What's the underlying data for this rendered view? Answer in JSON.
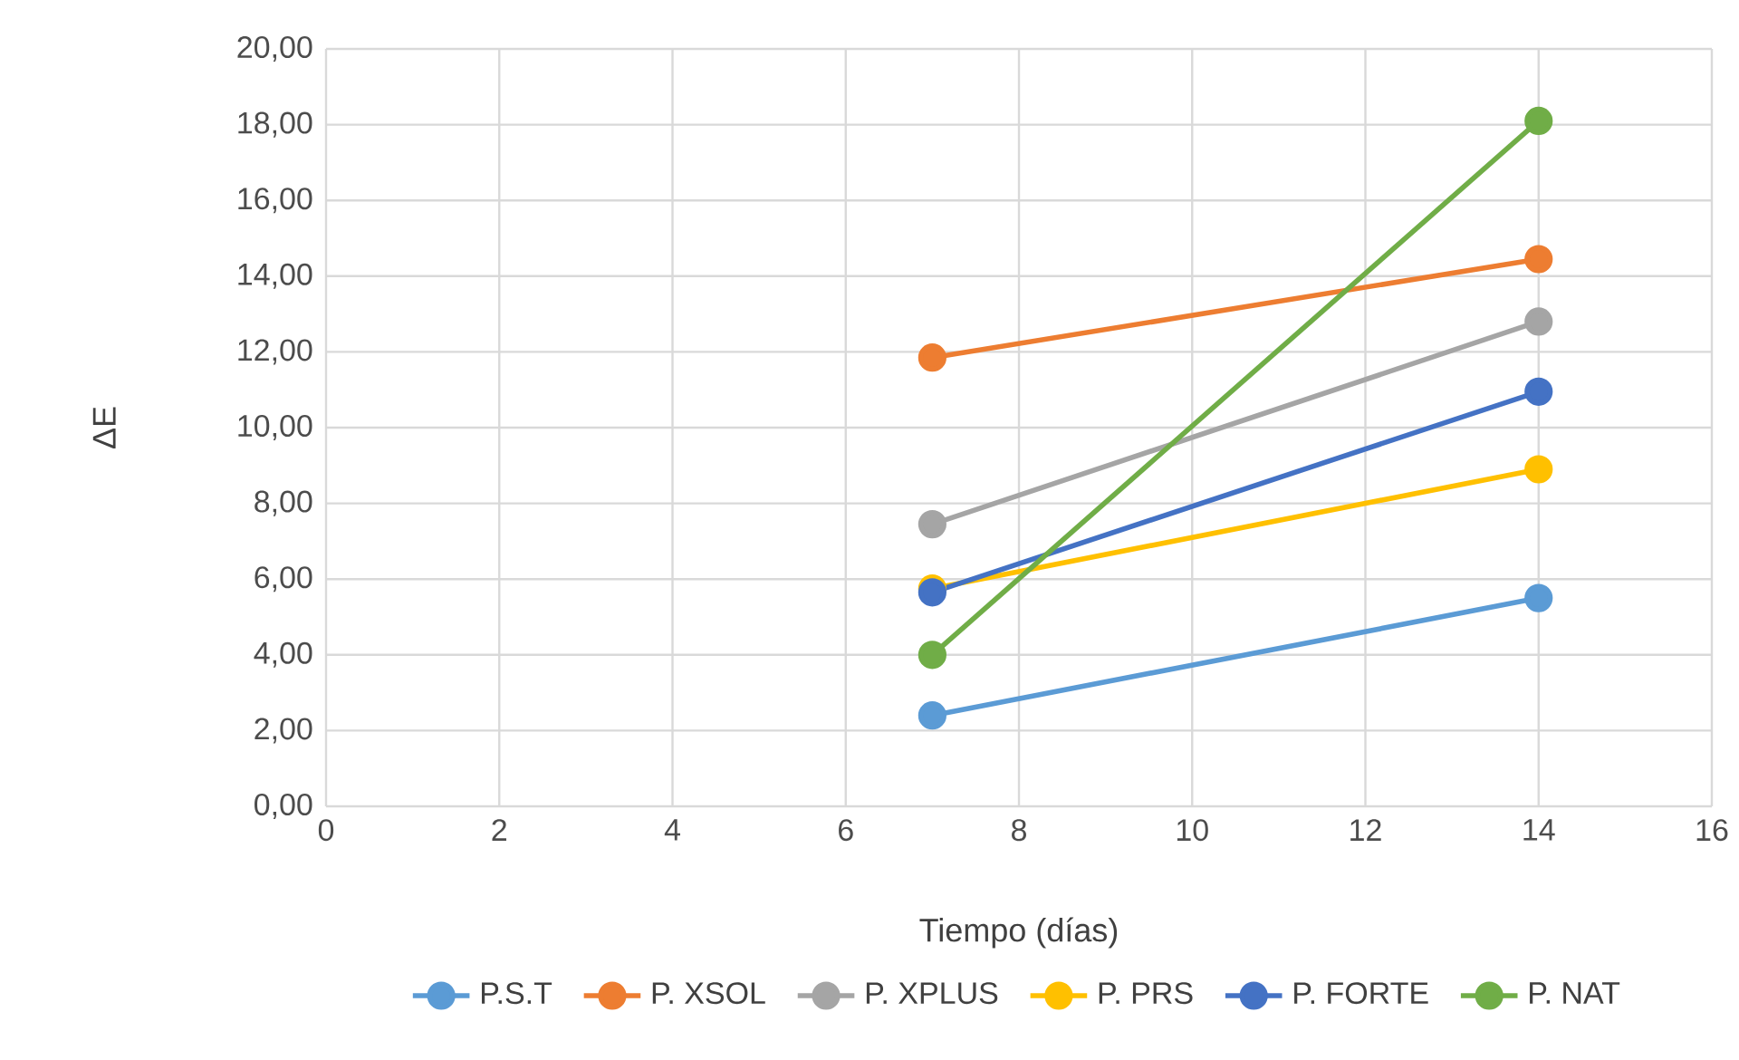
{
  "chart_data": {
    "type": "line",
    "xlabel": "Tiempo (días)",
    "ylabel": "ΔE",
    "x": [
      7,
      14
    ],
    "xlim": [
      0,
      16
    ],
    "xticks": [
      0,
      2,
      4,
      6,
      8,
      10,
      12,
      14,
      16
    ],
    "ylim": [
      0,
      20
    ],
    "yticks": [
      {
        "value": 0,
        "label": "0,00"
      },
      {
        "value": 2,
        "label": "2,00"
      },
      {
        "value": 4,
        "label": "4,00"
      },
      {
        "value": 6,
        "label": "6,00"
      },
      {
        "value": 8,
        "label": "8,00"
      },
      {
        "value": 10,
        "label": "10,00"
      },
      {
        "value": 12,
        "label": "12,00"
      },
      {
        "value": 14,
        "label": "14,00"
      },
      {
        "value": 16,
        "label": "16,00"
      },
      {
        "value": 18,
        "label": "18,00"
      },
      {
        "value": 20,
        "label": "20,00"
      }
    ],
    "grid": true,
    "legend": "bottom",
    "marker": "circle",
    "line_style": "solid",
    "series": [
      {
        "name": "P.S.T",
        "color": "#5b9bd5",
        "values": [
          2.4,
          5.5
        ]
      },
      {
        "name": "P. XSOL",
        "color": "#ed7d31",
        "values": [
          11.85,
          14.45
        ]
      },
      {
        "name": "P. XPLUS",
        "color": "#a5a5a5",
        "values": [
          7.45,
          12.8
        ]
      },
      {
        "name": "P. PRS",
        "color": "#ffc000",
        "values": [
          5.75,
          8.9
        ]
      },
      {
        "name": "P. FORTE",
        "color": "#4472c4",
        "values": [
          5.65,
          10.95
        ]
      },
      {
        "name": "P. NAT",
        "color": "#70ad47",
        "values": [
          4.0,
          18.1
        ]
      }
    ]
  }
}
